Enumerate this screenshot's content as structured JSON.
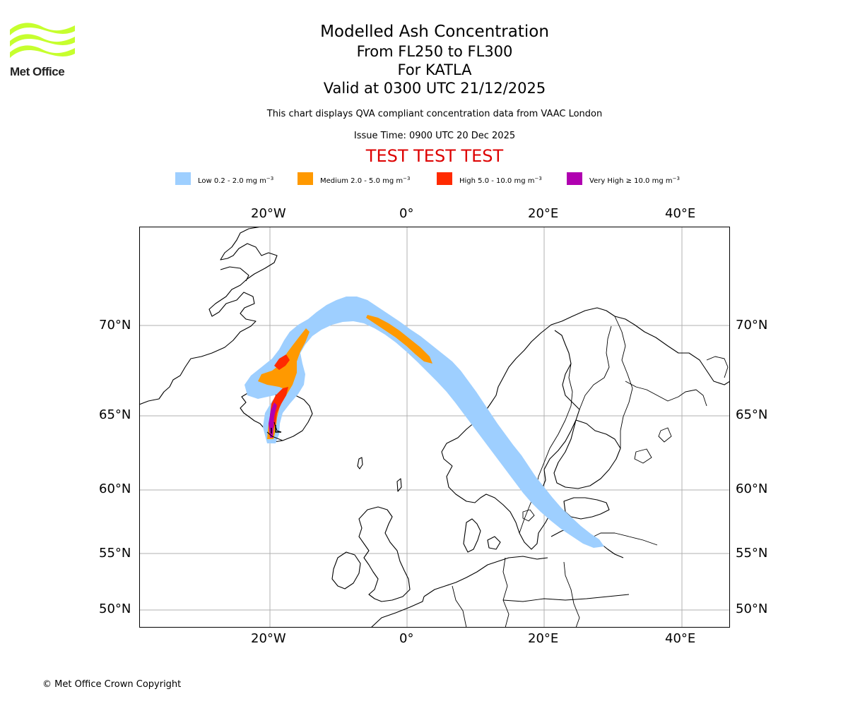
{
  "logo": {
    "text": "Met Office",
    "color": "#c6ff2e"
  },
  "title": {
    "main": "Modelled Ash Concentration",
    "levels": "From FL250 to FL300",
    "volcano": "For KATLA",
    "valid": "Valid at 0300 UTC 21/12/2025"
  },
  "note": "This chart displays QVA compliant concentration data from VAAC London",
  "issue": "Issue Time: 0900 UTC 20 Dec 2025",
  "test_banner": "TEST TEST TEST",
  "legend": [
    {
      "label": "Low 0.2 - 2.0 mg m",
      "color": "#9ecfff"
    },
    {
      "label": "Medium 2.0 - 5.0 mg m",
      "color": "#ff9900"
    },
    {
      "label": "High 5.0 - 10.0 mg m",
      "color": "#ff2a00"
    },
    {
      "label": "Very High ≥ 10.0 mg m",
      "color": "#b000b0"
    }
  ],
  "legend_unit_exponent": "−3",
  "axes": {
    "lon_ticks": [
      "20°W",
      "0°",
      "20°E",
      "40°E"
    ],
    "lat_ticks": [
      "70°N",
      "65°N",
      "60°N",
      "55°N",
      "50°N"
    ]
  },
  "copyright": "© Met Office Crown Copyright"
}
